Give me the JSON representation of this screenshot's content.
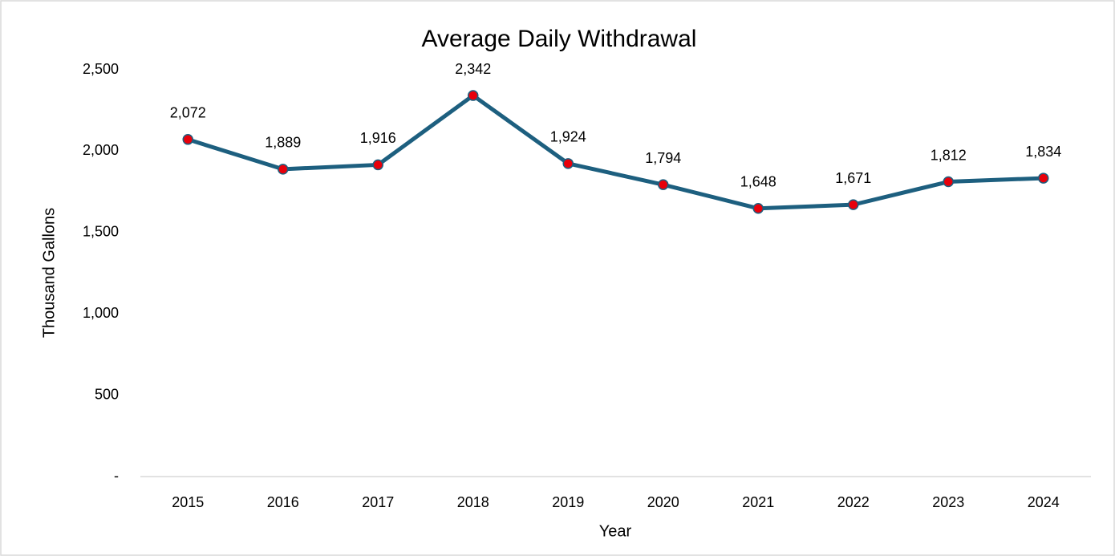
{
  "chart_data": {
    "type": "line",
    "title": "Average Daily Withdrawal",
    "x_label": "Year",
    "y_label": "Thousand Gallons",
    "categories": [
      "2015",
      "2016",
      "2017",
      "2018",
      "2019",
      "2020",
      "2021",
      "2022",
      "2023",
      "2024"
    ],
    "series": [
      {
        "name": "Average Daily Withdrawal",
        "color": "#1d5f7f",
        "marker_color": "#e8000b",
        "values": [
          2072,
          1889,
          1916,
          2342,
          1924,
          1794,
          1648,
          1671,
          1812,
          1834
        ],
        "value_labels": [
          "2,072",
          "1,889",
          "1,916",
          "2,342",
          "1,924",
          "1,794",
          "1,648",
          "1,671",
          "1,812",
          "1,834"
        ]
      }
    ],
    "ylim": [
      0,
      2500
    ],
    "yticks": [
      {
        "value": 0,
        "label": "-"
      },
      500,
      {
        "value": 1000,
        "label": "1,000"
      },
      {
        "value": 1500,
        "label": "1,500"
      },
      {
        "value": 2000,
        "label": "2,000"
      },
      {
        "value": 2500,
        "label": "2,500"
      }
    ],
    "grid": false
  }
}
